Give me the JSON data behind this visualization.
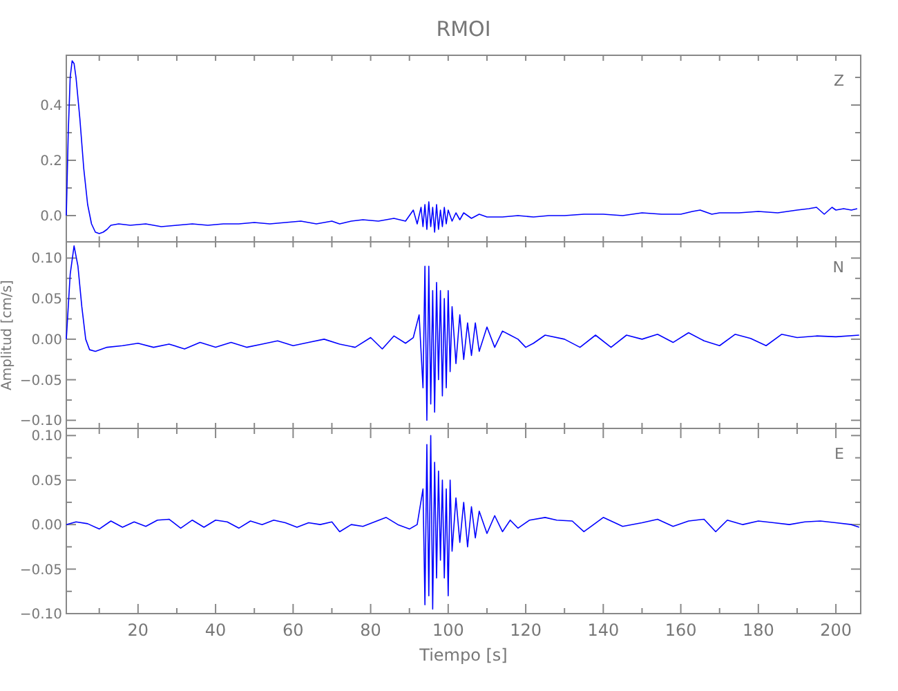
{
  "chart_data": [
    {
      "type": "line",
      "title": "RMOI",
      "annotations": [
        "Z"
      ],
      "tick_labels": "y",
      "xlim": [
        1.5,
        206.4
      ],
      "ylim": [
        -0.095,
        0.58
      ],
      "xticks": [
        {
          "value": 10,
          "label": null
        },
        {
          "value": 20,
          "label": null
        },
        {
          "value": 30,
          "label": null
        },
        {
          "value": 40,
          "label": null
        },
        {
          "value": 50,
          "label": null
        },
        {
          "value": 60,
          "label": null
        },
        {
          "value": 70,
          "label": null
        },
        {
          "value": 80,
          "label": null
        },
        {
          "value": 90,
          "label": null
        },
        {
          "value": 100,
          "label": null
        },
        {
          "value": 110,
          "label": null
        },
        {
          "value": 120,
          "label": null
        },
        {
          "value": 130,
          "label": null
        },
        {
          "value": 140,
          "label": null
        },
        {
          "value": 150,
          "label": null
        },
        {
          "value": 160,
          "label": null
        },
        {
          "value": 170,
          "label": null
        },
        {
          "value": 180,
          "label": null
        },
        {
          "value": 190,
          "label": null
        },
        {
          "value": 200,
          "label": null
        }
      ],
      "yticks": [
        {
          "value": 0,
          "label": "0.0"
        },
        {
          "value": 0.1,
          "label": null
        },
        {
          "value": 0.2,
          "label": "0.2"
        },
        {
          "value": 0.3,
          "label": null
        },
        {
          "value": 0.4,
          "label": "0.4"
        },
        {
          "value": 0.5,
          "label": null
        }
      ],
      "series": [
        {
          "color": "#0000ff",
          "x": [
            1.5,
            2,
            2.5,
            3,
            3.5,
            4,
            5,
            6,
            7,
            8,
            9,
            10,
            11,
            12,
            13,
            15,
            18,
            22,
            26,
            30,
            34,
            38,
            42,
            46,
            50,
            54,
            58,
            62,
            66,
            70,
            72,
            75,
            78,
            82,
            86,
            89,
            91,
            92,
            93,
            93.5,
            94,
            94.5,
            95,
            95.5,
            96,
            96.5,
            97,
            97.5,
            98,
            98.5,
            99,
            99.5,
            100,
            101,
            102,
            103,
            104,
            106,
            108,
            110,
            114,
            118,
            122,
            126,
            130,
            135,
            140,
            145,
            150,
            155,
            160,
            163,
            165,
            168,
            170,
            175,
            180,
            185,
            190,
            193,
            195,
            197,
            199,
            200,
            202,
            204,
            205.5
          ],
          "values": [
            0.0,
            0.3,
            0.5,
            0.56,
            0.55,
            0.5,
            0.35,
            0.17,
            0.04,
            -0.03,
            -0.06,
            -0.065,
            -0.06,
            -0.05,
            -0.035,
            -0.03,
            -0.035,
            -0.03,
            -0.04,
            -0.035,
            -0.03,
            -0.035,
            -0.03,
            -0.03,
            -0.025,
            -0.03,
            -0.025,
            -0.02,
            -0.03,
            -0.02,
            -0.03,
            -0.02,
            -0.015,
            -0.02,
            -0.01,
            -0.02,
            0.02,
            -0.03,
            0.03,
            -0.04,
            0.04,
            -0.05,
            0.05,
            -0.04,
            0.03,
            -0.06,
            0.04,
            -0.05,
            0.02,
            -0.04,
            0.03,
            -0.03,
            0.02,
            -0.02,
            0.01,
            -0.015,
            0.01,
            -0.01,
            0.005,
            -0.005,
            -0.005,
            0.0,
            -0.005,
            0.0,
            0.0,
            0.005,
            0.005,
            0.0,
            0.01,
            0.005,
            0.005,
            0.015,
            0.02,
            0.005,
            0.01,
            0.01,
            0.015,
            0.01,
            0.02,
            0.025,
            0.03,
            0.005,
            0.03,
            0.02,
            0.025,
            0.02,
            0.025
          ]
        }
      ]
    },
    {
      "type": "line",
      "ylabel": "Amplitud [cm/s]",
      "annotations": [
        "N"
      ],
      "tick_labels": "y",
      "xlim": [
        1.5,
        206.4
      ],
      "ylim": [
        -0.11,
        0.12
      ],
      "xticks": [
        {
          "value": 10,
          "label": null
        },
        {
          "value": 20,
          "label": null
        },
        {
          "value": 30,
          "label": null
        },
        {
          "value": 40,
          "label": null
        },
        {
          "value": 50,
          "label": null
        },
        {
          "value": 60,
          "label": null
        },
        {
          "value": 70,
          "label": null
        },
        {
          "value": 80,
          "label": null
        },
        {
          "value": 90,
          "label": null
        },
        {
          "value": 100,
          "label": null
        },
        {
          "value": 110,
          "label": null
        },
        {
          "value": 120,
          "label": null
        },
        {
          "value": 130,
          "label": null
        },
        {
          "value": 140,
          "label": null
        },
        {
          "value": 150,
          "label": null
        },
        {
          "value": 160,
          "label": null
        },
        {
          "value": 170,
          "label": null
        },
        {
          "value": 180,
          "label": null
        },
        {
          "value": 190,
          "label": null
        },
        {
          "value": 200,
          "label": null
        }
      ],
      "yticks": [
        {
          "value": -0.1,
          "label": "−0.10"
        },
        {
          "value": -0.075,
          "label": null
        },
        {
          "value": -0.05,
          "label": "−0.05"
        },
        {
          "value": -0.025,
          "label": null
        },
        {
          "value": 0,
          "label": "0.00"
        },
        {
          "value": 0.025,
          "label": null
        },
        {
          "value": 0.05,
          "label": "0.05"
        },
        {
          "value": 0.075,
          "label": null
        },
        {
          "value": 0.1,
          "label": "0.10"
        }
      ],
      "series": [
        {
          "color": "#0000ff",
          "x": [
            1.5,
            2.5,
            3.5,
            4.5,
            5.5,
            6.5,
            7.5,
            9,
            12,
            16,
            20,
            24,
            28,
            32,
            36,
            40,
            44,
            48,
            52,
            56,
            60,
            64,
            68,
            72,
            76,
            80,
            83,
            86,
            89,
            91,
            92.5,
            93.5,
            94,
            94.5,
            95,
            95.5,
            96,
            96.5,
            97,
            97.5,
            98,
            98.5,
            99,
            99.5,
            100,
            100.5,
            101,
            102,
            103,
            104,
            105,
            106,
            107,
            108,
            110,
            112,
            114,
            116,
            118,
            120,
            122,
            125,
            130,
            134,
            138,
            142,
            146,
            150,
            154,
            158,
            162,
            166,
            170,
            174,
            178,
            182,
            186,
            190,
            195,
            200,
            206
          ],
          "values": [
            0.0,
            0.08,
            0.115,
            0.09,
            0.04,
            0.0,
            -0.013,
            -0.015,
            -0.01,
            -0.008,
            -0.005,
            -0.01,
            -0.006,
            -0.012,
            -0.004,
            -0.01,
            -0.004,
            -0.01,
            -0.006,
            -0.002,
            -0.008,
            -0.004,
            0.0,
            -0.006,
            -0.01,
            0.002,
            -0.012,
            0.004,
            -0.005,
            0.002,
            0.03,
            -0.06,
            0.09,
            -0.1,
            0.09,
            -0.08,
            0.06,
            -0.09,
            0.07,
            -0.05,
            0.06,
            -0.07,
            0.05,
            -0.06,
            0.06,
            -0.04,
            0.04,
            -0.03,
            0.03,
            -0.025,
            0.02,
            -0.02,
            0.02,
            -0.015,
            0.015,
            -0.01,
            0.01,
            0.005,
            0.0,
            -0.01,
            -0.005,
            0.005,
            0.0,
            -0.01,
            0.005,
            -0.01,
            0.005,
            0.0,
            0.006,
            -0.004,
            0.008,
            -0.002,
            -0.008,
            0.006,
            0.001,
            -0.008,
            0.006,
            0.002,
            0.004,
            0.003,
            0.005
          ]
        }
      ]
    },
    {
      "type": "line",
      "xlabel": "Tiempo [s]",
      "annotations": [
        "E"
      ],
      "xlim": [
        1.5,
        206.4
      ],
      "ylim": [
        -0.1,
        0.108
      ],
      "xticks": [
        {
          "value": 10,
          "label": null
        },
        {
          "value": 20,
          "label": "20"
        },
        {
          "value": 30,
          "label": null
        },
        {
          "value": 40,
          "label": "40"
        },
        {
          "value": 50,
          "label": null
        },
        {
          "value": 60,
          "label": "60"
        },
        {
          "value": 70,
          "label": null
        },
        {
          "value": 80,
          "label": "80"
        },
        {
          "value": 90,
          "label": null
        },
        {
          "value": 100,
          "label": "100"
        },
        {
          "value": 110,
          "label": null
        },
        {
          "value": 120,
          "label": "120"
        },
        {
          "value": 130,
          "label": null
        },
        {
          "value": 140,
          "label": "140"
        },
        {
          "value": 150,
          "label": null
        },
        {
          "value": 160,
          "label": "160"
        },
        {
          "value": 170,
          "label": null
        },
        {
          "value": 180,
          "label": "180"
        },
        {
          "value": 190,
          "label": null
        },
        {
          "value": 200,
          "label": "200"
        }
      ],
      "yticks": [
        {
          "value": -0.1,
          "label": "−0.10"
        },
        {
          "value": -0.075,
          "label": null
        },
        {
          "value": -0.05,
          "label": "−0.05"
        },
        {
          "value": -0.025,
          "label": null
        },
        {
          "value": 0,
          "label": "0.00"
        },
        {
          "value": 0.025,
          "label": null
        },
        {
          "value": 0.05,
          "label": "0.05"
        },
        {
          "value": 0.075,
          "label": null
        },
        {
          "value": 0.1,
          "label": "0.10"
        }
      ],
      "series": [
        {
          "color": "#0000ff",
          "x": [
            1.5,
            4,
            7,
            10,
            13,
            16,
            19,
            22,
            25,
            28,
            31,
            34,
            37,
            40,
            43,
            46,
            49,
            52,
            55,
            58,
            61,
            64,
            67,
            70,
            72,
            75,
            78,
            81,
            84,
            87,
            90,
            92,
            93.5,
            94,
            94.5,
            95,
            95.5,
            96,
            96.5,
            97,
            97.5,
            98,
            98.5,
            99,
            99.5,
            100,
            100.5,
            101,
            102,
            103,
            104,
            105,
            106,
            107,
            108,
            110,
            112,
            114,
            116,
            118,
            121,
            125,
            128,
            132,
            135,
            140,
            145,
            150,
            154,
            158,
            162,
            166,
            169,
            172,
            176,
            180,
            184,
            188,
            192,
            196,
            200,
            204,
            206
          ],
          "values": [
            0.0,
            0.003,
            0.001,
            -0.005,
            0.004,
            -0.003,
            0.003,
            -0.002,
            0.005,
            0.006,
            -0.004,
            0.005,
            -0.003,
            0.005,
            0.003,
            -0.004,
            0.004,
            0.0,
            0.005,
            0.002,
            -0.003,
            0.002,
            0.0,
            0.003,
            -0.008,
            0.0,
            -0.002,
            0.003,
            0.008,
            0.0,
            -0.005,
            0.0,
            0.04,
            -0.09,
            0.09,
            -0.08,
            0.1,
            -0.095,
            0.07,
            -0.06,
            0.06,
            -0.04,
            0.05,
            -0.06,
            0.04,
            -0.08,
            0.05,
            -0.03,
            0.03,
            -0.02,
            0.025,
            -0.025,
            0.02,
            -0.015,
            0.015,
            -0.01,
            0.01,
            -0.008,
            0.005,
            -0.004,
            0.005,
            0.008,
            0.005,
            0.004,
            -0.008,
            0.008,
            -0.002,
            0.002,
            0.006,
            -0.002,
            0.004,
            0.006,
            -0.008,
            0.005,
            0.0,
            0.004,
            0.002,
            0.0,
            0.003,
            0.004,
            0.002,
            0.0,
            -0.003
          ]
        }
      ]
    }
  ]
}
